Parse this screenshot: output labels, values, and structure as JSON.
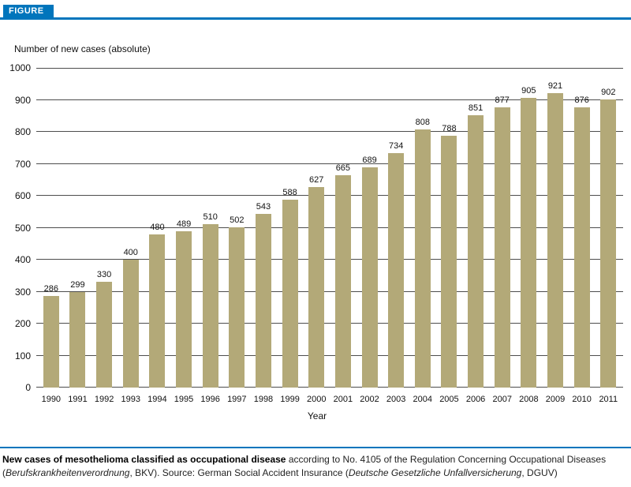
{
  "figure_label": "FIGURE",
  "chart_data": {
    "type": "bar",
    "title": "Number of new cases (absolute)",
    "xlabel": "Year",
    "ylabel": "",
    "ylim": [
      0,
      1000
    ],
    "yticks": [
      0,
      100,
      200,
      300,
      400,
      500,
      600,
      700,
      800,
      900,
      1000
    ],
    "grid": true,
    "legend_position": "none",
    "categories": [
      "1990",
      "1991",
      "1992",
      "1993",
      "1994",
      "1995",
      "1996",
      "1997",
      "1998",
      "1999",
      "2000",
      "2001",
      "2002",
      "2003",
      "2004",
      "2005",
      "2006",
      "2007",
      "2008",
      "2009",
      "2010",
      "2011"
    ],
    "values": [
      286,
      299,
      330,
      400,
      480,
      489,
      510,
      502,
      543,
      588,
      627,
      665,
      689,
      734,
      808,
      788,
      851,
      877,
      905,
      921,
      876,
      902
    ]
  },
  "caption": {
    "bold": "New cases of mesothelioma classified as occupational disease",
    "text_1": " according to No. 4105 of the Regulation Concerning Occupational Diseases (",
    "italic_1": "Berufskrankheitenverordnung",
    "text_2": ", BKV). Source: German Social Accident Insurance (",
    "italic_2": "Deutsche Gesetzliche Unfallversicherung",
    "text_3": ", DGUV)"
  },
  "colors": {
    "accent_blue": "#0075bc",
    "bar": "#b3a978",
    "gridline": "#4d4d4d"
  }
}
